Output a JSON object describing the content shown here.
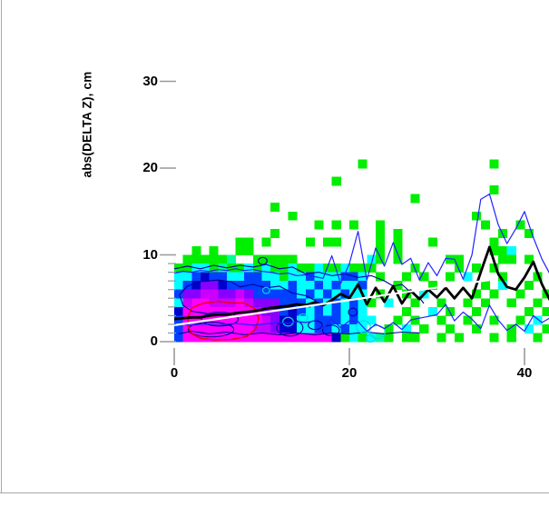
{
  "window": {
    "background": "#ffffff",
    "border_color": "#a8a8a8"
  },
  "chart_data": {
    "type": "heatmap",
    "title": "",
    "xlabel": "",
    "ylabel": "abs(DELTA Z), cm",
    "xlim": [
      0,
      43
    ],
    "ylim": [
      0,
      31
    ],
    "grid": "off",
    "legend": "none",
    "x_ticks": [
      {
        "value": 0,
        "label": "0"
      },
      {
        "value": 20,
        "label": "20"
      },
      {
        "value": 40,
        "label": "40"
      }
    ],
    "y_ticks": [
      {
        "value": 30,
        "label": "30"
      },
      {
        "value": 20,
        "label": "20"
      },
      {
        "value": 10,
        "label": "10"
      },
      {
        "value": 0,
        "label": "0"
      }
    ],
    "y_minor_ticks": [
      1,
      2,
      3,
      4,
      5,
      6,
      7,
      8,
      9
    ],
    "tick_color": "#999999",
    "cell_size": 1,
    "palette": {
      ".": "none",
      "g": "#00ee00",
      "t": "#00ff99",
      "c": "#00ffff",
      "s": "#00aaff",
      "b": "#0040ff",
      "n": "#0000cc",
      "p": "#8800ff",
      "v": "#cc00ff",
      "m": "#ff00ff"
    },
    "grid_note": "rows listed top-to-bottom for y=21..0, 44 columns for x=0..43, one char per 1x1 cell",
    "grid_rows_top_to_bottom": [
      "............................................",
      ".....................g..............g.......",
      "............................................",
      "..................g.........................",
      "....................................g.......",
      "...........................g................",
      "...........g................................",
      ".............g....................g.........",
      "................g.g.g..g...........g...g....",
      "...........g...........g.g...........g..g...",
      ".......gg.g....g.gg....g.g...g......g.......",
      "..g.g..gg..............g.g..........ggc.....",
      ".gggggt..ggggg........cg.g.....gg....gg.g...",
      "ggccgtggcgcggcggcggcggg....g....g.g.g.......",
      "ccbnbbccbbccgccbcccbbc.g..g.g..g.c...g...g..",
      "cbnppnbbbbbccbccbcbccb...g...g.....g.c..g..g",
      "bppvvppvpbbbbbcbcbcbcc.g..g.c.....g.g..g..g.",
      "cvmmvvvmvpppbbbcbcbcbcg.c..g..g..g.g..g..g.g",
      "nmmmmmmmmvppbnbcbcbcbc....g..c.g..g.....g.g.",
      "bmmmmmmmmmvpnnccbbbcbcc..g.g..g..g..g..g.c.g",
      "bmmmmmmmmvvpnnccbbcbcc..g.c.g..g..g...g.c.g.",
      "bmmmmmmmmmmmmmmmmmngcgctg.gg..g.g...g.g..g.g"
    ],
    "series": [
      {
        "name": "profile-mean",
        "color": "#000000",
        "width": 2.8,
        "x": [
          0,
          1,
          2,
          3,
          4,
          5,
          6,
          7,
          8,
          9,
          10,
          11,
          12,
          13,
          14,
          15,
          16,
          17,
          18,
          19,
          20,
          21,
          22,
          23,
          24,
          25,
          26,
          27,
          28,
          29,
          30,
          31,
          32,
          33,
          34,
          35,
          36,
          37,
          38,
          39,
          40,
          41,
          42,
          43
        ],
        "y": [
          2.6,
          2.7,
          2.8,
          2.8,
          3.0,
          3.1,
          3.1,
          3.3,
          3.4,
          3.5,
          3.7,
          3.9,
          4.0,
          4.1,
          4.3,
          4.2,
          4.5,
          4.2,
          4.8,
          5.5,
          5.0,
          6.6,
          4.3,
          6.2,
          4.6,
          6.4,
          4.4,
          5.9,
          4.9,
          6.0,
          5.1,
          6.2,
          5.0,
          6.2,
          5.0,
          8.0,
          10.9,
          7.8,
          6.3,
          6.0,
          7.4,
          9.2,
          6.6,
          4.6
        ]
      },
      {
        "name": "upper-envelope",
        "color": "#2222ff",
        "width": 1.2,
        "x": [
          0,
          1,
          2,
          3,
          4,
          5,
          6,
          7,
          8,
          9,
          10,
          11,
          12,
          13,
          14,
          15,
          16,
          17,
          18,
          19,
          20,
          21,
          22,
          23,
          24,
          25,
          26,
          27,
          28,
          29,
          30,
          31,
          32,
          33,
          34,
          35,
          36,
          37,
          38,
          39,
          40,
          41,
          42,
          43
        ],
        "y": [
          7.9,
          8.1,
          8.0,
          8.2,
          8.1,
          8.3,
          8.2,
          8.4,
          8.2,
          8.3,
          8.1,
          8.0,
          7.8,
          7.9,
          7.6,
          7.7,
          7.5,
          7.3,
          9.9,
          6.7,
          9.0,
          12.7,
          7.1,
          10.8,
          8.7,
          11.4,
          8.9,
          9.6,
          7.1,
          9.1,
          7.6,
          9.6,
          9.5,
          7.2,
          10.0,
          16.4,
          17.0,
          13.5,
          11.3,
          13.0,
          15.0,
          12.0,
          9.5,
          7.6
        ]
      },
      {
        "name": "lower-envelope",
        "color": "#2222ff",
        "width": 1.2,
        "x": [
          0,
          1,
          2,
          3,
          4,
          5,
          6,
          7,
          8,
          9,
          10,
          11,
          12,
          13,
          14,
          15,
          16,
          17,
          18,
          19,
          20,
          21,
          22,
          23,
          24,
          25,
          26,
          27,
          28,
          29,
          30,
          31,
          32,
          33,
          34,
          35,
          36,
          37,
          38,
          39,
          40,
          41,
          42,
          43
        ],
        "y": [
          1.9,
          2.0,
          1.9,
          2.0,
          2.0,
          1.9,
          2.0,
          2.1,
          2.0,
          1.9,
          2.0,
          2.1,
          2.2,
          2.1,
          2.3,
          2.2,
          2.4,
          1.5,
          2.6,
          1.6,
          2.4,
          2.3,
          1.2,
          2.0,
          1.5,
          2.2,
          1.4,
          2.5,
          2.7,
          2.9,
          3.1,
          4.3,
          2.4,
          3.4,
          2.6,
          1.5,
          4.2,
          2.5,
          1.3,
          2.0,
          1.2,
          3.0,
          2.2,
          2.8
        ]
      },
      {
        "name": "linear-fit",
        "color": "#ffffff",
        "width": 2.2,
        "x": [
          0,
          36
        ],
        "y": [
          1.9,
          7.1
        ]
      }
    ],
    "contours": {
      "navy": {
        "color": "#000099",
        "width": 1.1,
        "paths": [
          [
            [
              0,
              8.4
            ],
            [
              1.5,
              8.7
            ],
            [
              3,
              8.4
            ],
            [
              4.5,
              8.8
            ],
            [
              6,
              8.5
            ],
            [
              7.5,
              8.8
            ],
            [
              9,
              8.6
            ],
            [
              10.5,
              8.9
            ],
            [
              12,
              8.4
            ],
            [
              13.5,
              8.6
            ],
            [
              15,
              7.8
            ],
            [
              16.5,
              8.0
            ],
            [
              18,
              7.6
            ],
            [
              19.5,
              7.8
            ],
            [
              21,
              7.4
            ],
            [
              22.5,
              7.6
            ],
            [
              24,
              7.0
            ],
            [
              25,
              6.4
            ],
            [
              26,
              6.6
            ],
            [
              27,
              5.7
            ],
            [
              28,
              5.1
            ],
            [
              28.5,
              4.4
            ]
          ],
          [
            [
              0.6,
              5.4
            ],
            [
              1.5,
              6.4
            ],
            [
              3,
              6.9
            ],
            [
              5,
              7.1
            ],
            [
              6.5,
              6.9
            ],
            [
              7.5,
              6.3
            ],
            [
              9,
              6.6
            ],
            [
              10.5,
              6.2
            ],
            [
              12,
              6.4
            ],
            [
              13.5,
              5.6
            ],
            [
              15,
              5.3
            ],
            [
              16.2,
              4.7
            ],
            [
              15.5,
              4.0
            ],
            [
              14,
              4.2
            ],
            [
              12.5,
              3.7
            ],
            [
              11,
              3.9
            ],
            [
              9.5,
              3.5
            ],
            [
              8,
              3.3
            ],
            [
              6,
              3.2
            ],
            [
              4,
              3.2
            ],
            [
              2,
              3.5
            ],
            [
              1,
              4.2
            ],
            [
              0.6,
              5.4
            ]
          ],
          [
            [
              0.5,
              0.9
            ],
            [
              2,
              1.2
            ],
            [
              4,
              0.9
            ],
            [
              6,
              1.1
            ],
            [
              8,
              0.8
            ],
            [
              10,
              1.0
            ],
            [
              12,
              0.8
            ],
            [
              14,
              1.0
            ],
            [
              16,
              0.8
            ],
            [
              18,
              1.0
            ],
            [
              20,
              0.9
            ],
            [
              22,
              1.1
            ],
            [
              24,
              0.9
            ],
            [
              26,
              1.1
            ],
            [
              28,
              1.0
            ]
          ]
        ],
        "ellipses": [
          [
            4.2,
            1.4,
            2.6,
            0.85
          ],
          [
            5.2,
            2.6,
            2.1,
            0.8
          ],
          [
            13.2,
            1.6,
            1.5,
            0.95
          ],
          [
            16.1,
            1.9,
            0.8,
            0.5
          ],
          [
            17.9,
            1.3,
            0.95,
            0.6
          ],
          [
            20.4,
            3.4,
            0.5,
            0.45
          ],
          [
            10.1,
            9.3,
            0.5,
            0.4
          ]
        ]
      },
      "red": {
        "color": "#ee0000",
        "width": 1.4,
        "paths": [
          [
            [
              1.6,
              2.9
            ],
            [
              2.0,
              3.9
            ],
            [
              3.2,
              4.4
            ],
            [
              5,
              4.65
            ],
            [
              6.5,
              4.45
            ],
            [
              8,
              4.45
            ],
            [
              9.2,
              3.8
            ],
            [
              9.65,
              2.7
            ],
            [
              9.3,
              1.5
            ],
            [
              8.3,
              0.6
            ],
            [
              6.5,
              0.25
            ],
            [
              4.5,
              0.2
            ],
            [
              3,
              0.4
            ],
            [
              2.0,
              0.9
            ],
            [
              1.55,
              1.8
            ],
            [
              1.6,
              2.9
            ]
          ]
        ]
      },
      "cyan": {
        "color": "#00dddd",
        "width": 1.2,
        "ellipses": [
          [
            10.5,
            5.9,
            0.4,
            0.35
          ],
          [
            13.0,
            2.3,
            0.6,
            0.5
          ],
          [
            14.7,
            2.75,
            0.55,
            0.45
          ],
          [
            21.6,
            1.7,
            0.8,
            0.7
          ],
          [
            23.2,
            1.1,
            0.9,
            0.75
          ],
          [
            22.4,
            0.35,
            0.55,
            0.4
          ]
        ]
      }
    }
  }
}
